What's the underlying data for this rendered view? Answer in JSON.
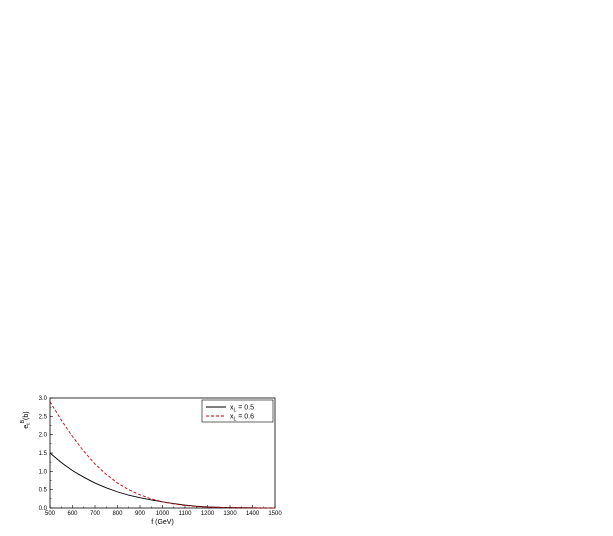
{
  "chart_data": {
    "type": "line",
    "xlabel": "f (GeV)",
    "ylabel": "e",
    "ylabel_sup": "B",
    "ylabel_sub": "t",
    "ylabel_tail": "(b)",
    "xlim": [
      500,
      1500
    ],
    "ylim": [
      0.0,
      3.0
    ],
    "xticks": [
      500,
      600,
      700,
      800,
      900,
      1000,
      1100,
      1200,
      1300,
      1400,
      1500
    ],
    "yticks": [
      "0.0",
      "0.5",
      "1.0",
      "1.5",
      "2.0",
      "2.5",
      "3.0"
    ],
    "grid": false,
    "legend_position": "top-right",
    "series": [
      {
        "name": "x",
        "name_sub": "L",
        "name_tail": " = 0.5",
        "color": "#000000",
        "style": "solid",
        "x": [
          500,
          550,
          600,
          650,
          700,
          750,
          800,
          850,
          900,
          950,
          1000,
          1050,
          1100,
          1150,
          1200,
          1250,
          1300,
          1350,
          1400,
          1450,
          1500
        ],
        "y": [
          1.5,
          1.24,
          1.02,
          0.84,
          0.68,
          0.55,
          0.44,
          0.35,
          0.28,
          0.22,
          0.17,
          0.12,
          0.08,
          0.05,
          0.03,
          0.02,
          0.012,
          0.007,
          0.004,
          0.002,
          0.001
        ]
      },
      {
        "name": "x",
        "name_sub": "L",
        "name_tail": " = 0.6",
        "color": "#cc0000",
        "style": "dashed",
        "x": [
          500,
          550,
          600,
          650,
          700,
          750,
          800,
          850,
          900,
          950,
          1000,
          1050,
          1100,
          1150,
          1200,
          1250,
          1300,
          1350,
          1400,
          1450,
          1500
        ],
        "y": [
          2.9,
          2.4,
          1.95,
          1.55,
          1.2,
          0.92,
          0.68,
          0.5,
          0.36,
          0.25,
          0.17,
          0.11,
          0.07,
          0.04,
          0.025,
          0.015,
          0.009,
          0.005,
          0.003,
          0.002,
          0.001
        ]
      }
    ]
  }
}
